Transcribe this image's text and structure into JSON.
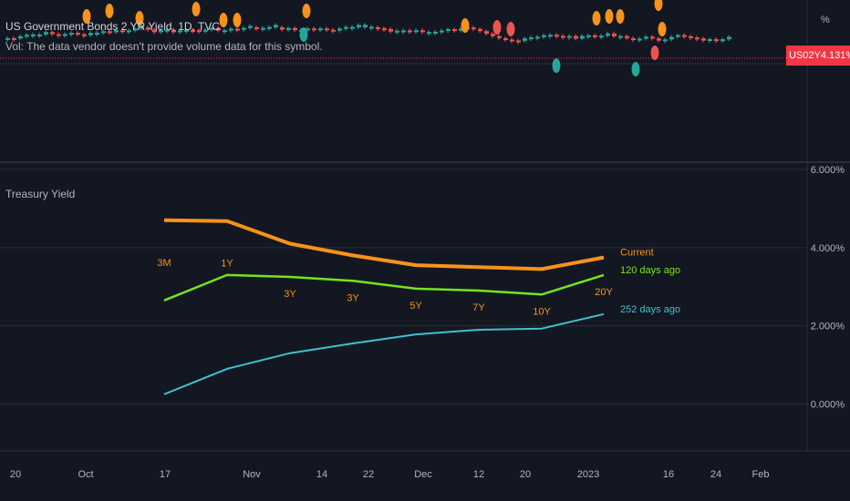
{
  "header": {
    "symbol_title": "US Government Bonds 2 YR Yield, 1D, TVC",
    "volume_note": "Vol: The data vendor doesn't provide volume data for this symbol.",
    "percent_sign": "%",
    "badge_symbol": "US02Y",
    "badge_value": "4.131%"
  },
  "indicator": {
    "title": "Treasury Yield"
  },
  "colors": {
    "background": "#131722",
    "current": "#f7931a",
    "days120": "#76e41a",
    "days252": "#40c0d0",
    "up_candle": "#26a69a",
    "down_candle": "#ef5350",
    "badge": "#f23645",
    "grid": "#2a2e39"
  },
  "time_axis": {
    "labels": [
      "20",
      "Oct",
      "17",
      "Nov",
      "14",
      "22",
      "Dec",
      "12",
      "20",
      "2023",
      "16",
      "24",
      "Feb"
    ]
  },
  "chart_data": {
    "type": "line",
    "title": "Treasury Yield",
    "categories": [
      "3M",
      "1Y",
      "3Y",
      "3Y",
      "5Y",
      "7Y",
      "10Y",
      "20Y"
    ],
    "ylim": [
      -1.2,
      6.0
    ],
    "ytick_labels": [
      "6.000%",
      "4.000%",
      "2.000%",
      "0.000%"
    ],
    "yticks": [
      6,
      4,
      2,
      0
    ],
    "grid": true,
    "series": [
      {
        "name": "Current",
        "values": [
          4.7,
          4.68,
          4.1,
          3.8,
          3.55,
          3.5,
          3.45,
          3.75
        ]
      },
      {
        "name": "120 days ago",
        "values": [
          2.65,
          3.3,
          3.25,
          3.15,
          2.95,
          2.9,
          2.8,
          3.3
        ]
      },
      {
        "name": "252 days ago",
        "values": [
          0.25,
          0.9,
          1.3,
          1.55,
          1.78,
          1.9,
          1.93,
          2.3
        ]
      }
    ]
  }
}
